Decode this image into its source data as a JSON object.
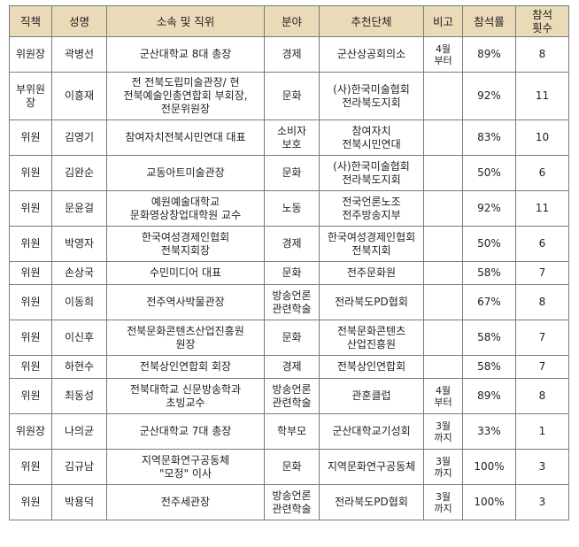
{
  "table": {
    "headers": [
      "직책",
      "성명",
      "소속 및 직위",
      "분야",
      "추천단체",
      "비고",
      "참석률",
      "참석\n횟수"
    ],
    "rows": [
      [
        "위원장",
        "곽병선",
        "군산대학교 8대 총장",
        "경제",
        "군산상공회의소",
        "4월\n부터",
        "89%",
        "8"
      ],
      [
        "부위원\n장",
        "이흥재",
        "전 전북도립미술관장/ 현\n전북예술인총연합회 부회장,\n전문위원장",
        "문화",
        "(사)한국미술협회\n전라북도지회",
        "",
        "92%",
        "11"
      ],
      [
        "위원",
        "김영기",
        "참여자치전북시민연대 대표",
        "소비자\n보호",
        "참여자치\n전북시민연대",
        "",
        "83%",
        "10"
      ],
      [
        "위원",
        "김완순",
        "교동아트미술관장",
        "문화",
        "(사)한국미술협회\n전라북도지회",
        "",
        "50%",
        "6"
      ],
      [
        "위원",
        "문윤걸",
        "예원예술대학교\n문화영상창업대학원 교수",
        "노동",
        "전국언론노조\n전주방송지부",
        "",
        "92%",
        "11"
      ],
      [
        "위원",
        "박영자",
        "한국여성경제인협회\n전북지회장",
        "경제",
        "한국여성경제인협회\n전북지회",
        "",
        "50%",
        "6"
      ],
      [
        "위원",
        "손상국",
        "수민미디어 대표",
        "문화",
        "전주문화원",
        "",
        "58%",
        "7"
      ],
      [
        "위원",
        "이동희",
        "전주역사박물관장",
        "방송언론\n관련학술",
        "전라북도PD협회",
        "",
        "67%",
        "8"
      ],
      [
        "위원",
        "이신후",
        "전북문화콘텐츠산업진흥원\n원장",
        "문화",
        "전북문화콘텐츠\n산업진흥원",
        "",
        "58%",
        "7"
      ],
      [
        "위원",
        "하현수",
        "전북상인연합회 회장",
        "경제",
        "전북상인연합회",
        "",
        "58%",
        "7"
      ],
      [
        "위원",
        "최동성",
        "전북대학교 신문방송학과\n초빙교수",
        "방송언론\n관련학술",
        "관훈클럽",
        "4월\n부터",
        "89%",
        "8"
      ],
      [
        "위원장",
        "나의균",
        "군산대학교 7대 총장",
        "학부모",
        "군산대학교기성회",
        "3월\n까지",
        "33%",
        "1"
      ],
      [
        "위원",
        "김규남",
        "지역문화연구공동체\n\"모정\" 이사",
        "문화",
        "지역문화연구공동체",
        "3월\n까지",
        "100%",
        "3"
      ],
      [
        "위원",
        "박용덕",
        "전주세관장",
        "방송언론\n관련학술",
        "전라북도PD협회",
        "3월\n까지",
        "100%",
        "3"
      ]
    ]
  }
}
